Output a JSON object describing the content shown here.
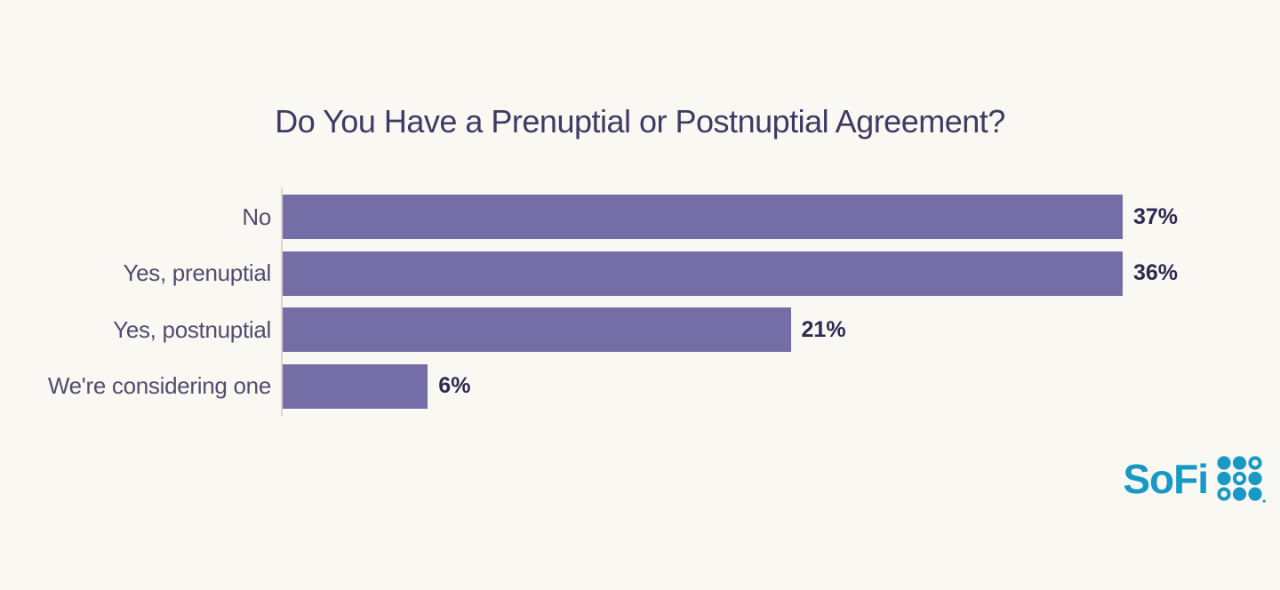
{
  "page": {
    "background_color": "#faf8f3"
  },
  "chart_data": {
    "type": "bar",
    "orientation": "horizontal",
    "title": "Do You Have a Prenuptial or Postnuptial Agreement?",
    "categories": [
      "No",
      "Yes, prenuptial",
      "Yes, postnuptial",
      "We're considering one"
    ],
    "values": [
      37,
      36,
      21,
      6
    ],
    "value_labels": [
      "37%",
      "36%",
      "21%",
      "6%"
    ],
    "xlabel": "",
    "ylabel": "",
    "xlim": [
      0,
      37
    ],
    "grid": false,
    "legend": false,
    "bar_color": "#756ea6",
    "axis_line_color": "#d8d5d0",
    "title_color": "#3e3b63",
    "category_label_color": "#504d6e",
    "value_label_color": "#2d2a51"
  },
  "branding": {
    "logo_text": "SoFi",
    "logo_color": "#1798c5",
    "logo_grid_icon": "sofi-dot-grid-icon",
    "logo_grid_pattern": [
      [
        "filled",
        "filled",
        "hollow"
      ],
      [
        "filled",
        "hollow",
        "filled"
      ],
      [
        "hollow",
        "filled",
        "filled"
      ]
    ]
  }
}
